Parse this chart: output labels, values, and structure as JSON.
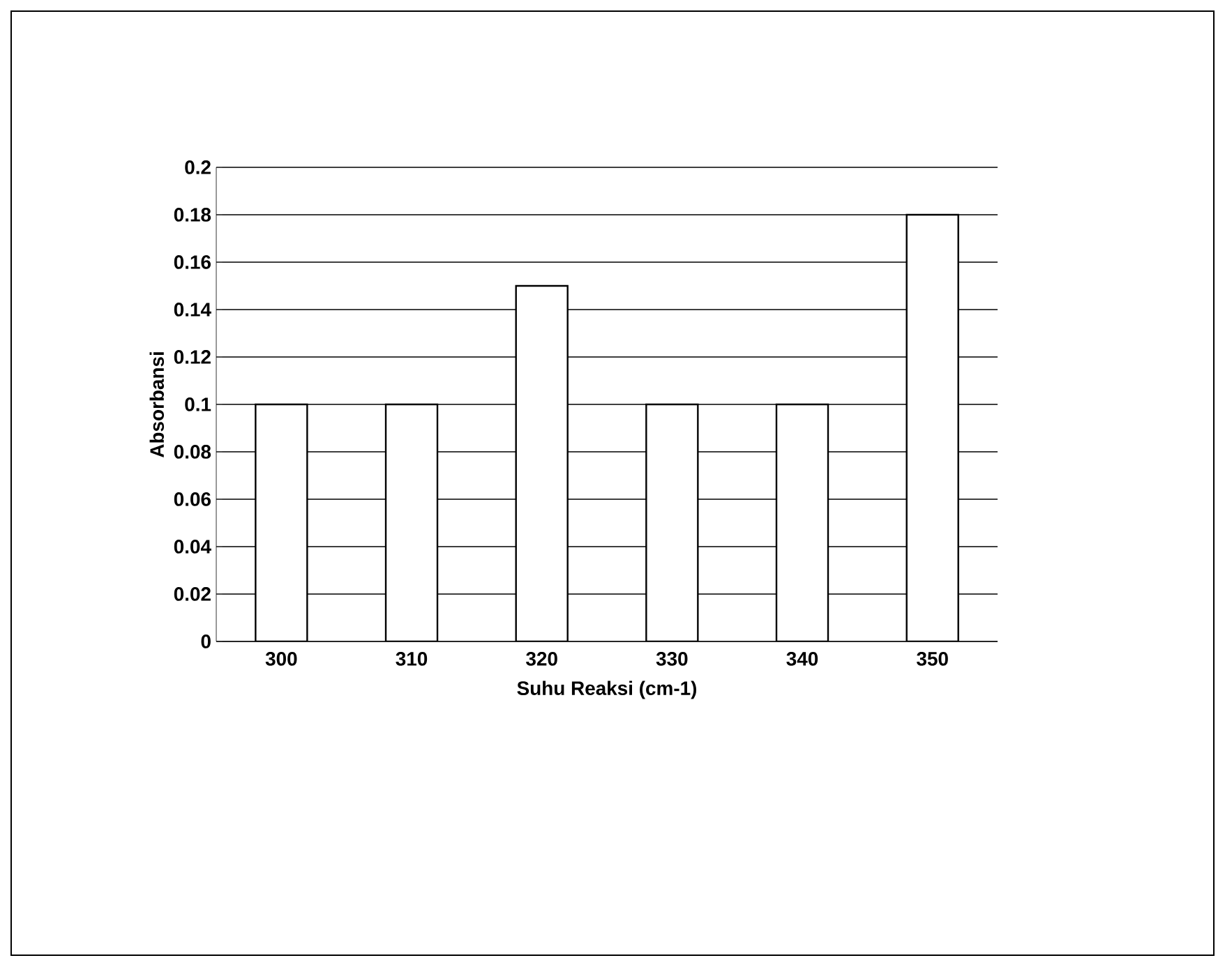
{
  "chart_data": {
    "type": "bar",
    "xlabel": "Suhu Reaksi (cm-1)",
    "ylabel": "Absorbansi",
    "categories": [
      "300",
      "310",
      "320",
      "330",
      "340",
      "350"
    ],
    "values": [
      0.1,
      0.1,
      0.15,
      0.1,
      0.1,
      0.18
    ],
    "color": "#ffffff",
    "ylim": [
      0,
      0.2
    ],
    "yticks": [
      0,
      0.02,
      0.04,
      0.06,
      0.08,
      0.1,
      0.12,
      0.14,
      0.16,
      0.18,
      0.2
    ],
    "grid": "y"
  }
}
